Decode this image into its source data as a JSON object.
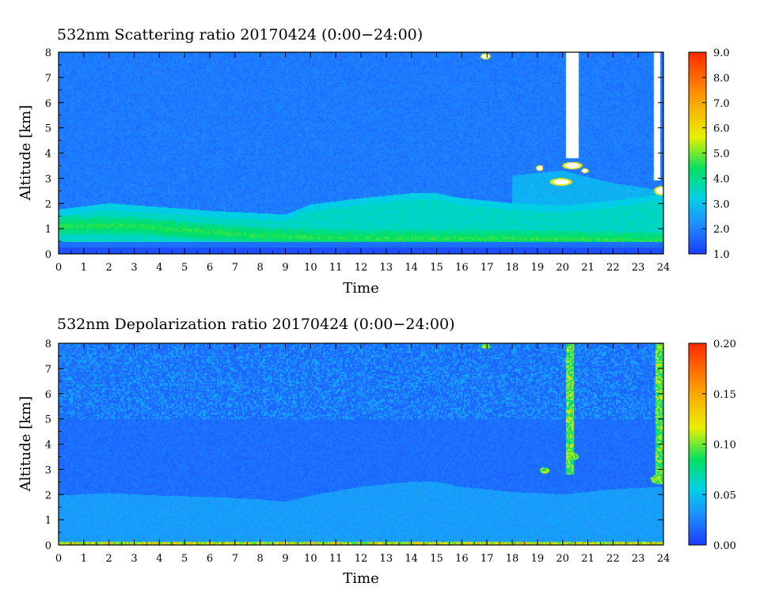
{
  "chart_data": [
    {
      "type": "heatmap",
      "title": "532nm Scattering ratio  20170424 (0:00−24:00)",
      "xlabel": "Time",
      "ylabel": "Altitude [km]",
      "xlim": [
        0,
        24
      ],
      "ylim": [
        0,
        8
      ],
      "x_ticks": [
        "0",
        "1",
        "2",
        "3",
        "4",
        "5",
        "6",
        "7",
        "8",
        "9",
        "10",
        "11",
        "12",
        "13",
        "14",
        "15",
        "16",
        "17",
        "18",
        "19",
        "20",
        "21",
        "22",
        "23",
        "24"
      ],
      "y_ticks": [
        "0",
        "1",
        "2",
        "3",
        "4",
        "5",
        "6",
        "7",
        "8"
      ],
      "colorbar": {
        "range": [
          1.0,
          9.0
        ],
        "ticks": [
          "1.0",
          "2.0",
          "3.0",
          "4.0",
          "5.0",
          "6.0",
          "7.0",
          "8.0",
          "9.0"
        ],
        "colors": [
          "#1a3cff",
          "#1e90ff",
          "#00d2e6",
          "#00e060",
          "#e8f000",
          "#ff9900",
          "#ff2a00"
        ]
      },
      "layers": {
        "background_level": 2.0,
        "boundary_layer_top_km": [
          [
            0,
            1.75
          ],
          [
            2,
            2.0
          ],
          [
            4,
            1.85
          ],
          [
            6,
            1.7
          ],
          [
            8,
            1.6
          ],
          [
            9,
            1.55
          ],
          [
            10,
            1.95
          ],
          [
            12,
            2.2
          ],
          [
            14,
            2.4
          ],
          [
            15,
            2.4
          ],
          [
            16,
            2.2
          ],
          [
            18,
            2.0
          ],
          [
            20,
            1.9
          ],
          [
            22,
            2.1
          ],
          [
            23.5,
            2.3
          ],
          [
            24,
            2.3
          ]
        ],
        "boundary_layer_level": 4.0,
        "aerosol_peak_km": [
          [
            0,
            1.1
          ],
          [
            3,
            1.1
          ],
          [
            5.5,
            0.9
          ],
          [
            8,
            0.7
          ],
          [
            12,
            0.6
          ],
          [
            18,
            0.6
          ],
          [
            24,
            0.5
          ]
        ],
        "aerosol_peak_level": 5.2,
        "elevated_layer_km": [
          [
            18,
            3.1
          ],
          [
            20,
            3.3
          ],
          [
            22,
            2.8
          ],
          [
            24,
            2.5
          ]
        ],
        "elevated_layer_level": 3.0,
        "gaps_missing": [
          [
            20.15,
            20.65,
            3.8,
            8.0
          ],
          [
            23.65,
            23.9,
            2.9,
            8.0
          ]
        ],
        "cloud_patches": [
          [
            16.95,
            7.85,
            0.2,
            0.12
          ],
          [
            19.1,
            3.4,
            0.15,
            0.12
          ],
          [
            20.4,
            3.5,
            0.4,
            0.15
          ],
          [
            19.95,
            2.85,
            0.45,
            0.15
          ],
          [
            20.9,
            3.3,
            0.15,
            0.1
          ],
          [
            23.9,
            2.5,
            0.25,
            0.18
          ]
        ]
      }
    },
    {
      "type": "heatmap",
      "title": "532nm Depolarization ratio  20170424 (0:00−24:00)",
      "xlabel": "Time",
      "ylabel": "Altitude [km]",
      "xlim": [
        0,
        24
      ],
      "ylim": [
        0,
        8
      ],
      "x_ticks": [
        "0",
        "1",
        "2",
        "3",
        "4",
        "5",
        "6",
        "7",
        "8",
        "9",
        "10",
        "11",
        "12",
        "13",
        "14",
        "15",
        "16",
        "17",
        "18",
        "19",
        "20",
        "21",
        "22",
        "23",
        "24"
      ],
      "y_ticks": [
        "0",
        "1",
        "2",
        "3",
        "4",
        "5",
        "6",
        "7",
        "8"
      ],
      "colorbar": {
        "range": [
          0.0,
          0.2
        ],
        "ticks": [
          "0.00",
          "0.05",
          "0.10",
          "0.15",
          "0.20"
        ],
        "colors": [
          "#1a3cff",
          "#1e90ff",
          "#00d2e6",
          "#00e060",
          "#e8f000",
          "#ff9900",
          "#ff2a00"
        ]
      },
      "layers": {
        "background_level": 0.02,
        "boundary_layer_top_km": [
          [
            0,
            1.95
          ],
          [
            2,
            2.05
          ],
          [
            4,
            1.95
          ],
          [
            6,
            1.9
          ],
          [
            8,
            1.8
          ],
          [
            9,
            1.7
          ],
          [
            10,
            1.95
          ],
          [
            12,
            2.3
          ],
          [
            14,
            2.5
          ],
          [
            15,
            2.5
          ],
          [
            16,
            2.3
          ],
          [
            18,
            2.1
          ],
          [
            20,
            2.0
          ],
          [
            22,
            2.2
          ],
          [
            24,
            2.3
          ]
        ],
        "boundary_layer_level": 0.04,
        "surface_layer_level": 0.13,
        "noise_above_km": 5.0,
        "cloud_columns": [
          [
            20.3,
            2.8,
            8.0
          ],
          [
            23.85,
            2.4,
            8.0
          ]
        ],
        "cloud_patches": [
          [
            16.95,
            7.9,
            0.2,
            0.1
          ],
          [
            19.3,
            2.95,
            0.2,
            0.12
          ],
          [
            20.4,
            3.5,
            0.25,
            0.15
          ],
          [
            23.7,
            2.6,
            0.2,
            0.15
          ]
        ]
      }
    }
  ]
}
